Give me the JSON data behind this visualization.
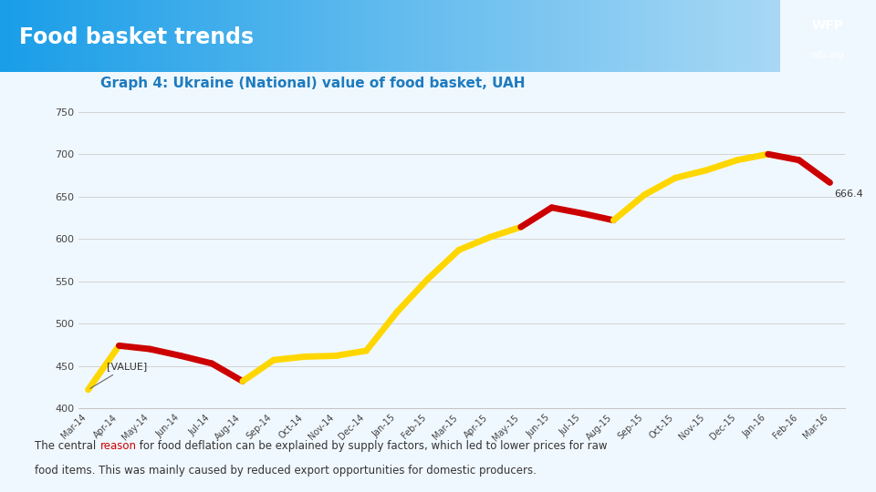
{
  "title": "Food basket trends",
  "subtitle": "Graph 4: Ukraine (National) value of food basket, UAH",
  "header_left_color": "#1a9ee8",
  "header_right_color": "#a8d8f5",
  "header_right_panel_color": "#1a9ee8",
  "header_text_color": "#ffffff",
  "chart_bg_color": "#f0f8ff",
  "page_bg_color": "#f0f8ff",
  "subtitle_color": "#1e7bbf",
  "labels": [
    "Mar-14",
    "Apr-14",
    "May-14",
    "Jun-14",
    "Jul-14",
    "Aug-14",
    "Sep-14",
    "Oct-14",
    "Nov-14",
    "Dec-14",
    "Jan-15",
    "Feb-15",
    "Mar-15",
    "Apr-15",
    "May-15",
    "Jun-15",
    "Jul-15",
    "Aug-15",
    "Sep-15",
    "Oct-15",
    "Nov-15",
    "Dec-15",
    "Jan-16",
    "Feb-16",
    "Mar-16"
  ],
  "values": [
    422,
    474,
    470,
    462,
    453,
    432,
    457,
    461,
    462,
    468,
    514,
    553,
    587,
    602,
    614,
    637,
    630,
    622,
    652,
    672,
    681,
    693,
    700,
    693,
    666.4
  ],
  "yellow_color": "#FFD700",
  "red_color": "#CC0000",
  "red_segments": [
    1,
    2,
    3,
    4,
    14,
    15,
    16,
    22,
    23
  ],
  "ylim": [
    400,
    760
  ],
  "yticks": [
    400,
    450,
    500,
    550,
    600,
    650,
    700,
    750
  ],
  "annotation_value": "666.4",
  "annotation_index": 24,
  "data_label_value": "[VALUE]",
  "data_label_index": 0,
  "body_text_color": "#333333",
  "reason_color": "#CC0000",
  "line_width": 5
}
